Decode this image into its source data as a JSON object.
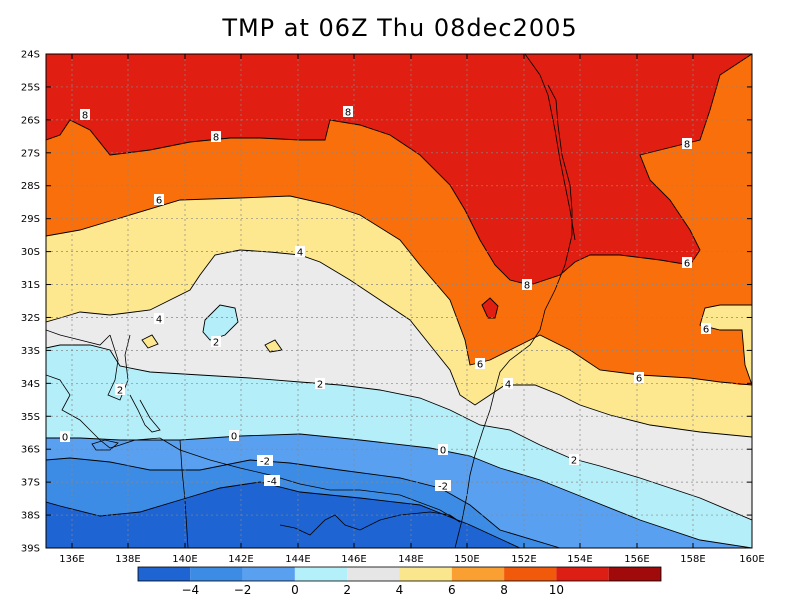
{
  "title": "TMP at 06Z Thu 08dec2005",
  "map": {
    "lat_labels": [
      "24S",
      "25S",
      "26S",
      "27S",
      "28S",
      "29S",
      "30S",
      "31S",
      "32S",
      "33S",
      "34S",
      "35S",
      "36S",
      "37S",
      "38S",
      "39S"
    ],
    "lon_labels": [
      "136E",
      "138E",
      "140E",
      "142E",
      "144E",
      "146E",
      "148E",
      "150E",
      "152E",
      "154E",
      "156E",
      "158E",
      "160E"
    ],
    "contour_labels": [
      {
        "text": "8"
      },
      {
        "text": "8"
      },
      {
        "text": "8"
      },
      {
        "text": "8"
      },
      {
        "text": "8"
      },
      {
        "text": "6"
      },
      {
        "text": "6"
      },
      {
        "text": "6"
      },
      {
        "text": "6"
      },
      {
        "text": "6"
      },
      {
        "text": "4"
      },
      {
        "text": "4"
      },
      {
        "text": "4"
      },
      {
        "text": "2"
      },
      {
        "text": "2"
      },
      {
        "text": "2"
      },
      {
        "text": "2"
      },
      {
        "text": "0"
      },
      {
        "text": "0"
      },
      {
        "text": "0"
      },
      {
        "text": "-2"
      },
      {
        "text": "-2"
      },
      {
        "text": "-4"
      }
    ]
  },
  "colorbar": {
    "labels": [
      "-4",
      "-2",
      "0",
      "2",
      "4",
      "6",
      "8",
      "10"
    ],
    "colors": [
      "#1e64d2",
      "#3c8ce6",
      "#5aa0f0",
      "#b4f0fa",
      "#e6e6e6",
      "#fae68c",
      "#faa032",
      "#f05a0a",
      "#dc1e14",
      "#a00a0a"
    ]
  },
  "palette": {
    "red": "#e01e12",
    "orange": "#f96f0b",
    "orange_light": "#faa032",
    "yellow": "#fde88f",
    "gray": "#ebebeb",
    "cyan": "#b4eef8",
    "blue_light": "#5aa0f0",
    "blue": "#3c8ce6",
    "blue_dark": "#1e64d2"
  }
}
